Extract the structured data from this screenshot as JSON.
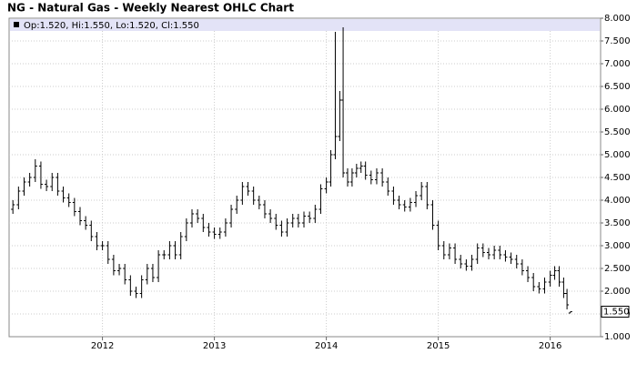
{
  "chart_data": {
    "type": "ohlc",
    "title": "NG - Natural Gas - Weekly Nearest OHLC Chart",
    "legend_text": "Op:1.520, Hi:1.550, Lo:1.520, Cl:1.550",
    "last_label": "1.550",
    "grid": true,
    "xlim": [
      2011.166,
      2016.45
    ],
    "xticks": [
      2012,
      2013,
      2014,
      2015,
      2016
    ],
    "ylim": [
      1,
      8
    ],
    "yticks": [
      {
        "value": 1,
        "label": "1.000"
      },
      {
        "value": 1.5,
        "label": "1.500"
      },
      {
        "value": 2,
        "label": "2.000"
      },
      {
        "value": 2.5,
        "label": "2.500"
      },
      {
        "value": 3,
        "label": "3.000"
      },
      {
        "value": 3.5,
        "label": "3.500"
      },
      {
        "value": 4,
        "label": "4.000"
      },
      {
        "value": 4.5,
        "label": "4.500"
      },
      {
        "value": 5,
        "label": "5.000"
      },
      {
        "value": 5.5,
        "label": "5.500"
      },
      {
        "value": 6,
        "label": "6.000"
      },
      {
        "value": 6.5,
        "label": "6.500"
      },
      {
        "value": 7,
        "label": "7.000"
      },
      {
        "value": 7.5,
        "label": "7.500"
      },
      {
        "value": 8,
        "label": "8.000"
      }
    ],
    "series": {
      "color": "#000000",
      "x": [
        2011.2,
        2011.25,
        2011.3,
        2011.35,
        2011.4,
        2011.45,
        2011.5,
        2011.55,
        2011.6,
        2011.65,
        2011.7,
        2011.75,
        2011.8,
        2011.85,
        2011.9,
        2011.95,
        2012.0,
        2012.05,
        2012.1,
        2012.15,
        2012.2,
        2012.25,
        2012.3,
        2012.35,
        2012.4,
        2012.45,
        2012.5,
        2012.55,
        2012.6,
        2012.65,
        2012.7,
        2012.75,
        2012.8,
        2012.85,
        2012.9,
        2012.95,
        2013.0,
        2013.05,
        2013.1,
        2013.15,
        2013.2,
        2013.25,
        2013.3,
        2013.35,
        2013.4,
        2013.45,
        2013.5,
        2013.55,
        2013.6,
        2013.65,
        2013.7,
        2013.75,
        2013.8,
        2013.85,
        2013.9,
        2013.95,
        2014.0,
        2014.04,
        2014.08,
        2014.12,
        2014.15,
        2014.19,
        2014.23,
        2014.27,
        2014.31,
        2014.35,
        2014.4,
        2014.45,
        2014.5,
        2014.55,
        2014.6,
        2014.65,
        2014.7,
        2014.75,
        2014.8,
        2014.85,
        2014.9,
        2014.95,
        2015.0,
        2015.05,
        2015.1,
        2015.15,
        2015.2,
        2015.25,
        2015.3,
        2015.35,
        2015.4,
        2015.45,
        2015.5,
        2015.55,
        2015.6,
        2015.65,
        2015.7,
        2015.75,
        2015.8,
        2015.85,
        2015.9,
        2015.95,
        2016.0,
        2016.04,
        2016.08,
        2016.12,
        2016.15,
        2016.18
      ],
      "open": [
        3.8,
        3.9,
        4.2,
        4.4,
        4.5,
        4.75,
        4.35,
        4.3,
        4.5,
        4.2,
        4.05,
        3.95,
        3.75,
        3.55,
        3.45,
        3.2,
        3.0,
        3.0,
        2.7,
        2.45,
        2.5,
        2.25,
        2.0,
        1.95,
        2.25,
        2.5,
        2.3,
        2.8,
        2.8,
        3.0,
        2.8,
        3.2,
        3.5,
        3.7,
        3.6,
        3.4,
        3.3,
        3.25,
        3.3,
        3.5,
        3.8,
        4.0,
        4.3,
        4.2,
        4.0,
        3.9,
        3.7,
        3.6,
        3.45,
        3.3,
        3.5,
        3.6,
        3.5,
        3.65,
        3.6,
        3.8,
        4.25,
        4.4,
        5.0,
        5.4,
        6.2,
        4.6,
        4.4,
        4.6,
        4.7,
        4.75,
        4.55,
        4.45,
        4.6,
        4.4,
        4.2,
        4.0,
        3.9,
        3.85,
        3.95,
        4.1,
        4.3,
        3.9,
        3.45,
        3.0,
        2.8,
        2.95,
        2.7,
        2.6,
        2.55,
        2.7,
        2.95,
        2.85,
        2.8,
        2.9,
        2.8,
        2.75,
        2.7,
        2.6,
        2.45,
        2.3,
        2.1,
        2.05,
        2.2,
        2.35,
        2.45,
        2.2,
        1.95,
        1.52
      ],
      "high": [
        4.0,
        4.3,
        4.5,
        4.6,
        4.9,
        4.85,
        4.45,
        4.6,
        4.6,
        4.3,
        4.15,
        4.05,
        3.85,
        3.65,
        3.55,
        3.3,
        3.1,
        3.1,
        2.8,
        2.6,
        2.6,
        2.35,
        2.1,
        2.35,
        2.6,
        2.6,
        2.9,
        2.9,
        3.1,
        3.1,
        3.3,
        3.6,
        3.8,
        3.8,
        3.7,
        3.5,
        3.4,
        3.4,
        3.6,
        3.9,
        4.1,
        4.4,
        4.4,
        4.3,
        4.1,
        4.0,
        3.8,
        3.7,
        3.55,
        3.6,
        3.7,
        3.7,
        3.75,
        3.75,
        3.9,
        4.35,
        4.5,
        5.1,
        7.7,
        6.4,
        7.8,
        4.7,
        4.7,
        4.8,
        4.85,
        4.85,
        4.65,
        4.7,
        4.7,
        4.5,
        4.3,
        4.1,
        4.0,
        4.05,
        4.2,
        4.4,
        4.4,
        4.0,
        3.55,
        3.1,
        3.05,
        3.05,
        2.8,
        2.7,
        2.8,
        3.05,
        3.05,
        2.95,
        3.0,
        3.0,
        2.9,
        2.85,
        2.8,
        2.7,
        2.55,
        2.4,
        2.2,
        2.3,
        2.45,
        2.55,
        2.55,
        2.3,
        2.05,
        1.55
      ],
      "low": [
        3.7,
        3.8,
        4.1,
        4.3,
        4.4,
        4.25,
        4.2,
        4.2,
        4.1,
        3.95,
        3.85,
        3.65,
        3.45,
        3.35,
        3.1,
        2.9,
        2.9,
        2.6,
        2.35,
        2.35,
        2.15,
        1.9,
        1.85,
        1.85,
        2.15,
        2.2,
        2.2,
        2.7,
        2.7,
        2.7,
        2.7,
        3.1,
        3.4,
        3.5,
        3.3,
        3.2,
        3.15,
        3.15,
        3.2,
        3.4,
        3.7,
        3.9,
        4.1,
        3.9,
        3.8,
        3.6,
        3.5,
        3.35,
        3.2,
        3.2,
        3.4,
        3.4,
        3.4,
        3.5,
        3.5,
        3.7,
        4.15,
        4.3,
        4.9,
        5.3,
        4.5,
        4.3,
        4.3,
        4.5,
        4.6,
        4.45,
        4.35,
        4.35,
        4.3,
        4.1,
        3.9,
        3.8,
        3.75,
        3.75,
        3.85,
        4.0,
        3.8,
        3.35,
        2.9,
        2.7,
        2.7,
        2.6,
        2.5,
        2.45,
        2.45,
        2.6,
        2.75,
        2.7,
        2.7,
        2.7,
        2.65,
        2.6,
        2.5,
        2.35,
        2.2,
        2.0,
        1.95,
        1.95,
        2.1,
        2.25,
        2.1,
        1.85,
        1.6,
        1.52
      ],
      "close": [
        3.9,
        4.2,
        4.4,
        4.5,
        4.75,
        4.35,
        4.3,
        4.5,
        4.2,
        4.05,
        3.95,
        3.75,
        3.55,
        3.45,
        3.2,
        3.0,
        3.0,
        2.7,
        2.45,
        2.5,
        2.25,
        2.0,
        1.95,
        2.25,
        2.5,
        2.3,
        2.8,
        2.8,
        3.0,
        2.8,
        3.2,
        3.5,
        3.7,
        3.6,
        3.4,
        3.3,
        3.25,
        3.3,
        3.5,
        3.8,
        4.0,
        4.3,
        4.2,
        4.0,
        3.9,
        3.7,
        3.6,
        3.45,
        3.3,
        3.5,
        3.6,
        3.5,
        3.65,
        3.6,
        3.8,
        4.25,
        4.4,
        5.0,
        5.4,
        6.2,
        4.6,
        4.4,
        4.6,
        4.7,
        4.75,
        4.55,
        4.45,
        4.6,
        4.4,
        4.2,
        4.0,
        3.9,
        3.85,
        3.95,
        4.1,
        4.3,
        3.9,
        3.45,
        3.0,
        2.8,
        2.95,
        2.7,
        2.6,
        2.55,
        2.7,
        2.95,
        2.85,
        2.8,
        2.9,
        2.8,
        2.75,
        2.7,
        2.6,
        2.45,
        2.3,
        2.1,
        2.05,
        2.2,
        2.35,
        2.45,
        2.2,
        1.95,
        1.7,
        1.55
      ]
    }
  }
}
